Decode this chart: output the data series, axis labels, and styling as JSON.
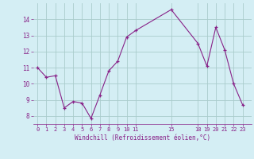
{
  "x": [
    0,
    1,
    2,
    3,
    4,
    5,
    6,
    7,
    8,
    9,
    10,
    11,
    15,
    18,
    19,
    20,
    21,
    22,
    23
  ],
  "y": [
    11.0,
    10.4,
    10.5,
    8.5,
    8.9,
    8.8,
    7.85,
    9.3,
    10.8,
    11.4,
    12.9,
    13.3,
    14.6,
    12.5,
    11.1,
    13.5,
    12.1,
    10.0,
    8.7
  ],
  "line_color": "#882288",
  "marker_color": "#882288",
  "bg_color": "#d4eef4",
  "grid_color": "#aacccc",
  "xlabel": "Windchill (Refroidissement éolien,°C)",
  "xlabel_color": "#882288",
  "tick_color": "#882288",
  "xticks": [
    0,
    1,
    2,
    3,
    4,
    5,
    6,
    7,
    8,
    9,
    10,
    11,
    15,
    18,
    19,
    20,
    21,
    22,
    23
  ],
  "yticks": [
    8,
    9,
    10,
    11,
    12,
    13,
    14
  ],
  "ylim": [
    7.5,
    15.0
  ],
  "xlim": [
    -0.5,
    24.0
  ]
}
